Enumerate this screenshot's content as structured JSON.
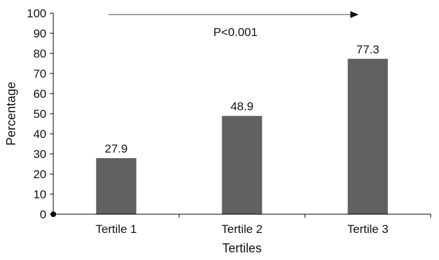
{
  "chart_data": {
    "type": "bar",
    "categories": [
      "Tertile 1",
      "Tertile 2",
      "Tertile 3"
    ],
    "values": [
      27.9,
      48.9,
      77.3
    ],
    "data_labels": [
      "27.9",
      "48.9",
      "77.3"
    ],
    "title": "",
    "xlabel": "Tertiles",
    "ylabel": "Percentage",
    "ylim": [
      0,
      100
    ],
    "y_ticks": [
      0,
      10,
      20,
      30,
      40,
      50,
      60,
      70,
      80,
      90,
      100
    ],
    "grid": false,
    "annotation": "P<0.001",
    "bar_color": "#616161",
    "axis_color": "#000000"
  }
}
